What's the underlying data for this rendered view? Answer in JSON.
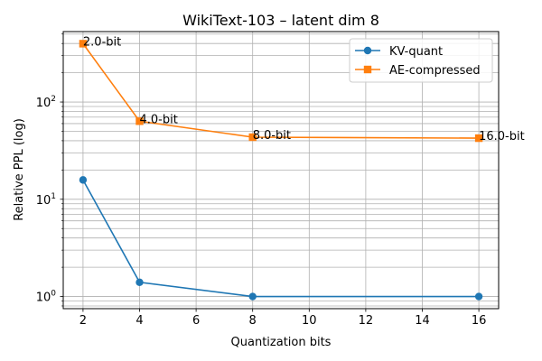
{
  "chart_data": {
    "type": "line",
    "title": "WikiText-103 – latent dim 8",
    "xlabel": "Quantization bits",
    "ylabel": "Relative PPL (log)",
    "xlim": [
      1.3,
      16.7
    ],
    "xticks": [
      2,
      4,
      6,
      8,
      10,
      12,
      14,
      16
    ],
    "yscale": "log",
    "ylim": [
      0.75,
      530
    ],
    "ytick_labels": [
      {
        "value": 1,
        "base": "10",
        "exp": "0"
      },
      {
        "value": 10,
        "base": "10",
        "exp": "1"
      },
      {
        "value": 100,
        "base": "10",
        "exp": "2"
      }
    ],
    "grid": "major and minor",
    "legend_position": "upper right",
    "x": [
      2,
      4,
      8,
      16
    ],
    "series": [
      {
        "name": "KV-quant",
        "color": "#1f77b4",
        "marker": "circle",
        "values": [
          15.8,
          1.4,
          1.0,
          1.0
        ]
      },
      {
        "name": "AE-compressed",
        "color": "#ff7f0e",
        "marker": "square",
        "values": [
          398,
          63.5,
          43.5,
          42.5
        ]
      }
    ],
    "annotations": [
      {
        "text": "2.0-bit",
        "x": 2,
        "y": 398
      },
      {
        "text": "4.0-bit",
        "x": 4,
        "y": 63.5
      },
      {
        "text": "8.0-bit",
        "x": 8,
        "y": 43.5
      },
      {
        "text": "16.0-bit",
        "x": 16,
        "y": 42.5
      }
    ]
  }
}
